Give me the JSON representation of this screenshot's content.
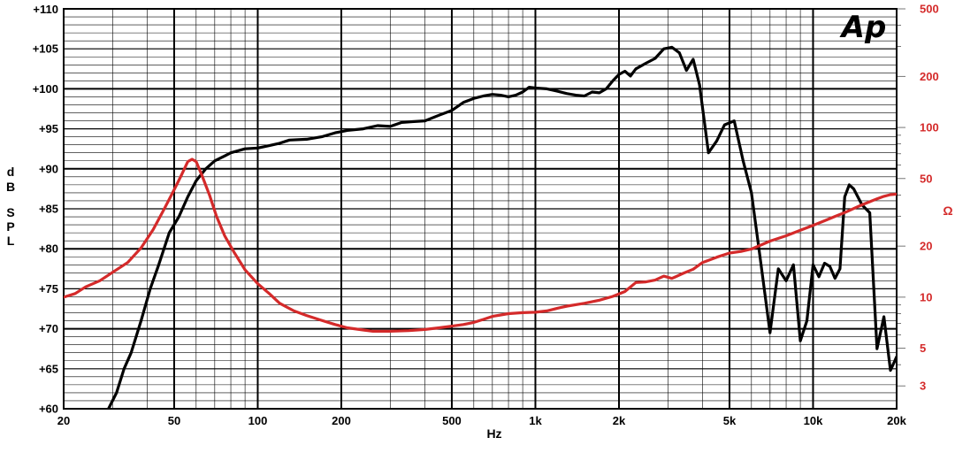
{
  "chart_data": {
    "type": "line",
    "logo": "Ap",
    "xlabel": "Hz",
    "ylabel_left": [
      "d",
      "B",
      "S",
      "P",
      "L"
    ],
    "ylabel_right": "Ω",
    "x_scale": "log",
    "xlim": [
      20,
      20000
    ],
    "ylim_left": [
      60,
      110
    ],
    "ylim_right": [
      2.2,
      500
    ],
    "y_right_scale": "log",
    "grid": true,
    "colors": {
      "spl": "#000000",
      "impedance": "#d42a2a",
      "grid": "#000000",
      "right_axis": "#d42a2a"
    },
    "x_ticks": [
      {
        "label": "20",
        "value": 20
      },
      {
        "label": "50",
        "value": 50
      },
      {
        "label": "100",
        "value": 100
      },
      {
        "label": "200",
        "value": 200
      },
      {
        "label": "500",
        "value": 500
      },
      {
        "label": "1k",
        "value": 1000
      },
      {
        "label": "2k",
        "value": 2000
      },
      {
        "label": "5k",
        "value": 5000
      },
      {
        "label": "10k",
        "value": 10000
      },
      {
        "label": "20k",
        "value": 20000
      }
    ],
    "y_left_ticks": [
      {
        "label": "+110",
        "value": 110
      },
      {
        "label": "+105",
        "value": 105
      },
      {
        "label": "+100",
        "value": 100
      },
      {
        "label": "+95",
        "value": 95
      },
      {
        "label": "+90",
        "value": 90
      },
      {
        "label": "+85",
        "value": 85
      },
      {
        "label": "+80",
        "value": 80
      },
      {
        "label": "+75",
        "value": 75
      },
      {
        "label": "+70",
        "value": 70
      },
      {
        "label": "+65",
        "value": 65
      },
      {
        "label": "+60",
        "value": 60
      }
    ],
    "y_right_ticks": [
      {
        "label": "500",
        "value": 500
      },
      {
        "label": "200",
        "value": 200
      },
      {
        "label": "100",
        "value": 100
      },
      {
        "label": "50",
        "value": 50
      },
      {
        "label": "20",
        "value": 20
      },
      {
        "label": "10",
        "value": 10
      },
      {
        "label": "5",
        "value": 5
      },
      {
        "label": "3",
        "value": 3
      }
    ],
    "series": [
      {
        "key": "spl",
        "axis": "left",
        "points": [
          [
            29,
            60
          ],
          [
            31,
            62
          ],
          [
            33,
            65
          ],
          [
            35,
            67
          ],
          [
            38,
            71
          ],
          [
            41,
            75
          ],
          [
            44,
            78
          ],
          [
            48,
            82
          ],
          [
            52,
            84
          ],
          [
            56,
            86.5
          ],
          [
            60,
            88.5
          ],
          [
            65,
            90
          ],
          [
            70,
            91
          ],
          [
            75,
            91.5
          ],
          [
            80,
            92
          ],
          [
            90,
            92.5
          ],
          [
            100,
            92.6
          ],
          [
            110,
            92.9
          ],
          [
            120,
            93.2
          ],
          [
            130,
            93.6
          ],
          [
            150,
            93.7
          ],
          [
            170,
            94
          ],
          [
            190,
            94.5
          ],
          [
            210,
            94.8
          ],
          [
            240,
            95
          ],
          [
            270,
            95.4
          ],
          [
            300,
            95.3
          ],
          [
            330,
            95.8
          ],
          [
            360,
            95.9
          ],
          [
            400,
            96
          ],
          [
            450,
            96.7
          ],
          [
            500,
            97.3
          ],
          [
            550,
            98.3
          ],
          [
            600,
            98.8
          ],
          [
            650,
            99.1
          ],
          [
            700,
            99.3
          ],
          [
            750,
            99.2
          ],
          [
            800,
            99
          ],
          [
            850,
            99.2
          ],
          [
            900,
            99.6
          ],
          [
            950,
            100.2
          ],
          [
            1000,
            100.1
          ],
          [
            1100,
            100
          ],
          [
            1200,
            99.7
          ],
          [
            1300,
            99.4
          ],
          [
            1400,
            99.2
          ],
          [
            1500,
            99.1
          ],
          [
            1600,
            99.6
          ],
          [
            1700,
            99.5
          ],
          [
            1800,
            100
          ],
          [
            1900,
            101
          ],
          [
            2000,
            101.8
          ],
          [
            2100,
            102.2
          ],
          [
            2200,
            101.6
          ],
          [
            2300,
            102.5
          ],
          [
            2500,
            103.2
          ],
          [
            2700,
            103.8
          ],
          [
            2900,
            105
          ],
          [
            3100,
            105.2
          ],
          [
            3300,
            104.5
          ],
          [
            3500,
            102.3
          ],
          [
            3700,
            103.7
          ],
          [
            3900,
            100.5
          ],
          [
            4200,
            92
          ],
          [
            4500,
            93.5
          ],
          [
            4800,
            95.5
          ],
          [
            5200,
            96
          ],
          [
            5600,
            91
          ],
          [
            6000,
            87
          ],
          [
            6500,
            78
          ],
          [
            7000,
            69.5
          ],
          [
            7500,
            77.5
          ],
          [
            8000,
            76
          ],
          [
            8500,
            78
          ],
          [
            9000,
            68.5
          ],
          [
            9500,
            71
          ],
          [
            10000,
            78
          ],
          [
            10500,
            76.5
          ],
          [
            11000,
            78.2
          ],
          [
            11500,
            77.8
          ],
          [
            12000,
            76.3
          ],
          [
            12500,
            77.5
          ],
          [
            13000,
            86.5
          ],
          [
            13500,
            88
          ],
          [
            14000,
            87.5
          ],
          [
            15000,
            85.5
          ],
          [
            16000,
            84.5
          ],
          [
            17000,
            67.5
          ],
          [
            18000,
            71.5
          ],
          [
            19000,
            64.8
          ],
          [
            20000,
            66.5
          ]
        ]
      },
      {
        "key": "impedance",
        "axis": "right",
        "points": [
          [
            20,
            10
          ],
          [
            22,
            10.5
          ],
          [
            24,
            11.5
          ],
          [
            27,
            12.5
          ],
          [
            30,
            14
          ],
          [
            34,
            16
          ],
          [
            38,
            19.5
          ],
          [
            42,
            25
          ],
          [
            46,
            33
          ],
          [
            50,
            43
          ],
          [
            53,
            52
          ],
          [
            56,
            63
          ],
          [
            58,
            65
          ],
          [
            60,
            63
          ],
          [
            63,
            52
          ],
          [
            67,
            40
          ],
          [
            71,
            30
          ],
          [
            76,
            23
          ],
          [
            82,
            18.5
          ],
          [
            90,
            14.5
          ],
          [
            100,
            12
          ],
          [
            110,
            10.5
          ],
          [
            120,
            9.2
          ],
          [
            135,
            8.3
          ],
          [
            150,
            7.8
          ],
          [
            170,
            7.3
          ],
          [
            190,
            6.9
          ],
          [
            210,
            6.6
          ],
          [
            240,
            6.4
          ],
          [
            260,
            6.3
          ],
          [
            300,
            6.3
          ],
          [
            350,
            6.35
          ],
          [
            400,
            6.45
          ],
          [
            450,
            6.6
          ],
          [
            500,
            6.75
          ],
          [
            550,
            6.9
          ],
          [
            600,
            7.1
          ],
          [
            650,
            7.4
          ],
          [
            700,
            7.7
          ],
          [
            750,
            7.85
          ],
          [
            800,
            8
          ],
          [
            900,
            8.1
          ],
          [
            1000,
            8.15
          ],
          [
            1100,
            8.3
          ],
          [
            1200,
            8.6
          ],
          [
            1300,
            8.85
          ],
          [
            1500,
            9.2
          ],
          [
            1700,
            9.6
          ],
          [
            1900,
            10.1
          ],
          [
            2100,
            10.8
          ],
          [
            2300,
            12.2
          ],
          [
            2500,
            12.3
          ],
          [
            2700,
            12.6
          ],
          [
            2900,
            13.3
          ],
          [
            3100,
            12.9
          ],
          [
            3400,
            13.8
          ],
          [
            3700,
            14.6
          ],
          [
            4000,
            16
          ],
          [
            4500,
            17.2
          ],
          [
            5000,
            18.2
          ],
          [
            5500,
            18.6
          ],
          [
            6000,
            19.2
          ],
          [
            6500,
            20.3
          ],
          [
            7000,
            21.4
          ],
          [
            8000,
            23
          ],
          [
            9000,
            24.8
          ],
          [
            10000,
            26.5
          ],
          [
            11000,
            28.2
          ],
          [
            12000,
            29.9
          ],
          [
            13000,
            31.5
          ],
          [
            14000,
            33.3
          ],
          [
            15000,
            35
          ],
          [
            16000,
            36.5
          ],
          [
            17000,
            38
          ],
          [
            18000,
            39.3
          ],
          [
            19000,
            40.2
          ],
          [
            20000,
            40.5
          ]
        ]
      }
    ]
  }
}
